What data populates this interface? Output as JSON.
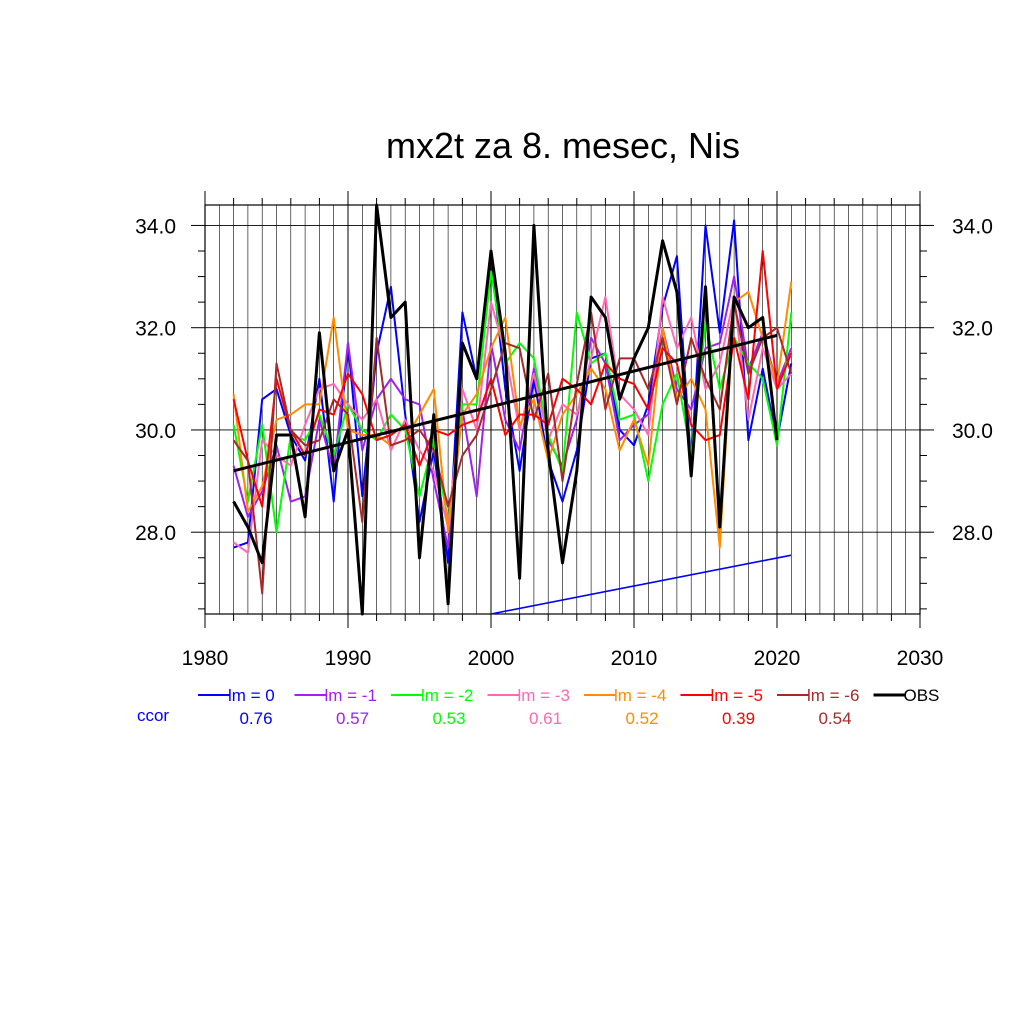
{
  "chart_data": {
    "type": "line",
    "title": "mx2t za 8. mesec, Nis",
    "xlabel": "",
    "ylabel": "",
    "xlim": [
      1980,
      2030
    ],
    "ylim": [
      26.4,
      34.4
    ],
    "x_ticks": [
      "1980",
      "1990",
      "2000",
      "2010",
      "2020",
      "2030"
    ],
    "y_ticks": [
      "28.0",
      "30.0",
      "32.0",
      "34.0"
    ],
    "grid": true,
    "legend_position": "bottom",
    "ccor_label": "ccor",
    "x": [
      1982,
      1983,
      1984,
      1985,
      1986,
      1987,
      1988,
      1989,
      1990,
      1991,
      1992,
      1993,
      1994,
      1995,
      1996,
      1997,
      1998,
      1999,
      2000,
      2001,
      2002,
      2003,
      2004,
      2005,
      2006,
      2007,
      2008,
      2009,
      2010,
      2011,
      2012,
      2013,
      2014,
      2015,
      2016,
      2017,
      2018,
      2019,
      2020,
      2021
    ],
    "series": [
      {
        "name": "lm = 0",
        "ccor": "0.76",
        "color": "#0000ff",
        "values": [
          27.7,
          27.8,
          30.6,
          30.8,
          29.9,
          29.4,
          31.0,
          28.6,
          31.7,
          28.7,
          31.5,
          32.8,
          30.3,
          28.2,
          29.6,
          27.4,
          32.3,
          31.0,
          33.4,
          30.8,
          29.2,
          31.0,
          29.4,
          28.6,
          29.6,
          31.4,
          31.5,
          30.0,
          29.7,
          30.5,
          32.4,
          33.4,
          29.3,
          34.0,
          31.9,
          34.1,
          29.8,
          31.2,
          29.8,
          31.3
        ]
      },
      {
        "name": "lm = -1",
        "ccor": "0.57",
        "color": "#a020f0",
        "values": [
          29.3,
          28.3,
          28.8,
          29.7,
          28.6,
          28.7,
          30.2,
          29.2,
          31.7,
          29.6,
          30.6,
          31.0,
          30.6,
          30.5,
          29.0,
          27.7,
          30.4,
          28.7,
          31.7,
          30.2,
          29.6,
          31.2,
          29.8,
          29.3,
          30.2,
          31.8,
          31.3,
          29.8,
          30.1,
          30.3,
          32.0,
          30.8,
          30.4,
          31.6,
          31.7,
          33.0,
          31.2,
          31.9,
          30.9,
          31.6
        ]
      },
      {
        "name": "lm = -2",
        "ccor": "0.53",
        "color": "#00ff00",
        "values": [
          30.1,
          28.6,
          30.1,
          28.0,
          29.9,
          29.8,
          30.3,
          29.5,
          30.5,
          30.0,
          29.8,
          30.3,
          30.0,
          28.7,
          29.8,
          28.2,
          30.5,
          30.5,
          33.1,
          31.3,
          31.7,
          31.4,
          29.9,
          29.2,
          32.3,
          31.3,
          31.5,
          30.2,
          30.3,
          29.0,
          30.5,
          31.1,
          29.5,
          32.1,
          30.8,
          31.8,
          31.3,
          31.0,
          29.7,
          32.3
        ]
      },
      {
        "name": "lm = -3",
        "ccor": "0.61",
        "color": "#ff69b4",
        "values": [
          27.8,
          27.6,
          29.8,
          29.5,
          29.3,
          30.1,
          30.8,
          30.9,
          30.5,
          30.2,
          30.6,
          29.6,
          30.2,
          29.6,
          29.2,
          28.1,
          30.8,
          30.0,
          32.5,
          31.5,
          30.0,
          31.1,
          29.8,
          30.5,
          30.3,
          31.4,
          32.6,
          30.7,
          30.4,
          29.9,
          32.6,
          31.6,
          32.2,
          30.8,
          31.3,
          32.6,
          30.2,
          31.6,
          30.8,
          31.1
        ]
      },
      {
        "name": "lm = -4",
        "ccor": "0.52",
        "color": "#ff8c00",
        "values": [
          30.7,
          28.4,
          28.9,
          30.2,
          30.3,
          30.5,
          30.5,
          32.2,
          30.0,
          29.9,
          29.9,
          29.7,
          29.8,
          30.3,
          30.8,
          28.0,
          30.3,
          30.7,
          31.6,
          32.2,
          30.1,
          30.6,
          29.4,
          30.3,
          30.7,
          31.2,
          30.8,
          29.6,
          30.2,
          29.3,
          32.0,
          30.6,
          31.0,
          30.4,
          27.7,
          32.5,
          32.7,
          31.8,
          30.9,
          32.9
        ]
      },
      {
        "name": "lm = -5",
        "ccor": "0.39",
        "color": "#ff0000",
        "values": [
          30.6,
          29.4,
          28.5,
          31.0,
          30.0,
          29.5,
          30.4,
          30.3,
          31.1,
          30.7,
          29.8,
          29.9,
          30.1,
          29.3,
          30.0,
          29.9,
          30.1,
          30.2,
          31.0,
          29.9,
          30.3,
          30.3,
          30.1,
          31.0,
          30.8,
          30.5,
          31.3,
          31.0,
          30.9,
          30.4,
          31.6,
          31.3,
          30.1,
          29.8,
          29.9,
          31.8,
          30.6,
          33.5,
          30.8,
          31.5
        ]
      },
      {
        "name": "lm = -6",
        "ccor": "0.54",
        "color": "#a52a2a",
        "values": [
          29.8,
          29.4,
          26.8,
          31.3,
          30.0,
          29.7,
          29.8,
          30.6,
          30.3,
          28.2,
          31.8,
          29.7,
          29.8,
          30.0,
          29.6,
          28.5,
          29.5,
          29.9,
          30.8,
          31.7,
          31.6,
          30.2,
          31.1,
          29.0,
          30.9,
          32.3,
          30.4,
          31.4,
          31.4,
          30.8,
          31.8,
          30.5,
          31.8,
          31.0,
          30.4,
          32.5,
          31.1,
          31.8,
          32.0,
          31.1
        ]
      },
      {
        "name": "OBS",
        "ccor": "",
        "color": "#000000",
        "values": [
          28.6,
          28.1,
          27.4,
          29.9,
          29.9,
          28.3,
          31.9,
          29.2,
          30.0,
          26.4,
          34.4,
          32.2,
          32.5,
          27.5,
          30.3,
          26.6,
          31.7,
          31.0,
          33.5,
          31.5,
          27.1,
          34.0,
          29.6,
          27.4,
          29.2,
          32.6,
          32.2,
          30.6,
          31.4,
          32.0,
          33.7,
          32.7,
          29.1,
          32.8,
          28.1,
          32.6,
          32.0,
          32.2,
          29.8,
          null
        ]
      }
    ],
    "trend_obs": {
      "x": [
        1982,
        2020
      ],
      "y": [
        29.2,
        31.85
      ],
      "color": "#000000"
    },
    "trend_blue": {
      "x": [
        2000,
        2021
      ],
      "y": [
        26.4,
        27.55
      ],
      "color": "#0000ff"
    }
  }
}
